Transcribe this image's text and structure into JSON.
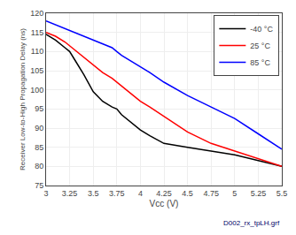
{
  "chart_data": {
    "type": "line",
    "xlabel": "Vcc (V)",
    "ylabel": "Receiver Low-to-High Propagation Delay (ns)",
    "annotations": [
      "D002_rx_tpLH.grf"
    ],
    "xlim": [
      3,
      5.5
    ],
    "ylim": [
      75,
      120
    ],
    "xticks": [
      3,
      3.25,
      3.5,
      3.75,
      4,
      4.25,
      4.5,
      4.75,
      5,
      5.25,
      5.5
    ],
    "yticks": [
      75,
      80,
      85,
      90,
      95,
      100,
      105,
      110,
      115,
      120
    ],
    "grid": true,
    "legend": "upper right",
    "x": [
      3.0,
      3.1,
      3.2,
      3.25,
      3.3,
      3.4,
      3.5,
      3.6,
      3.7,
      3.75,
      3.8,
      3.9,
      4.0,
      4.1,
      4.25,
      4.5,
      4.75,
      5.0,
      5.25,
      5.5
    ],
    "series": [
      {
        "name": "-40 °C",
        "color": "#000000",
        "values": [
          114.5,
          113.0,
          111.0,
          110.0,
          108.0,
          104.0,
          99.5,
          97.0,
          95.5,
          95.0,
          93.5,
          91.5,
          89.5,
          88.0,
          86.0,
          85.0,
          84.0,
          83.0,
          81.5,
          80.0
        ]
      },
      {
        "name": "25 °C",
        "color": "#ff0000",
        "values": [
          115.0,
          114.0,
          112.5,
          111.5,
          110.5,
          108.5,
          106.5,
          104.5,
          103.0,
          102.0,
          101.0,
          99.0,
          97.0,
          95.5,
          93.0,
          89.0,
          86.0,
          84.0,
          82.0,
          80.0
        ]
      },
      {
        "name": "85 °C",
        "color": "#0000ff",
        "values": [
          118.0,
          117.0,
          116.0,
          115.5,
          115.0,
          114.0,
          113.0,
          112.0,
          111.0,
          110.0,
          109.0,
          107.5,
          106.0,
          104.5,
          102.0,
          98.5,
          95.5,
          92.5,
          88.5,
          84.5
        ]
      }
    ]
  }
}
